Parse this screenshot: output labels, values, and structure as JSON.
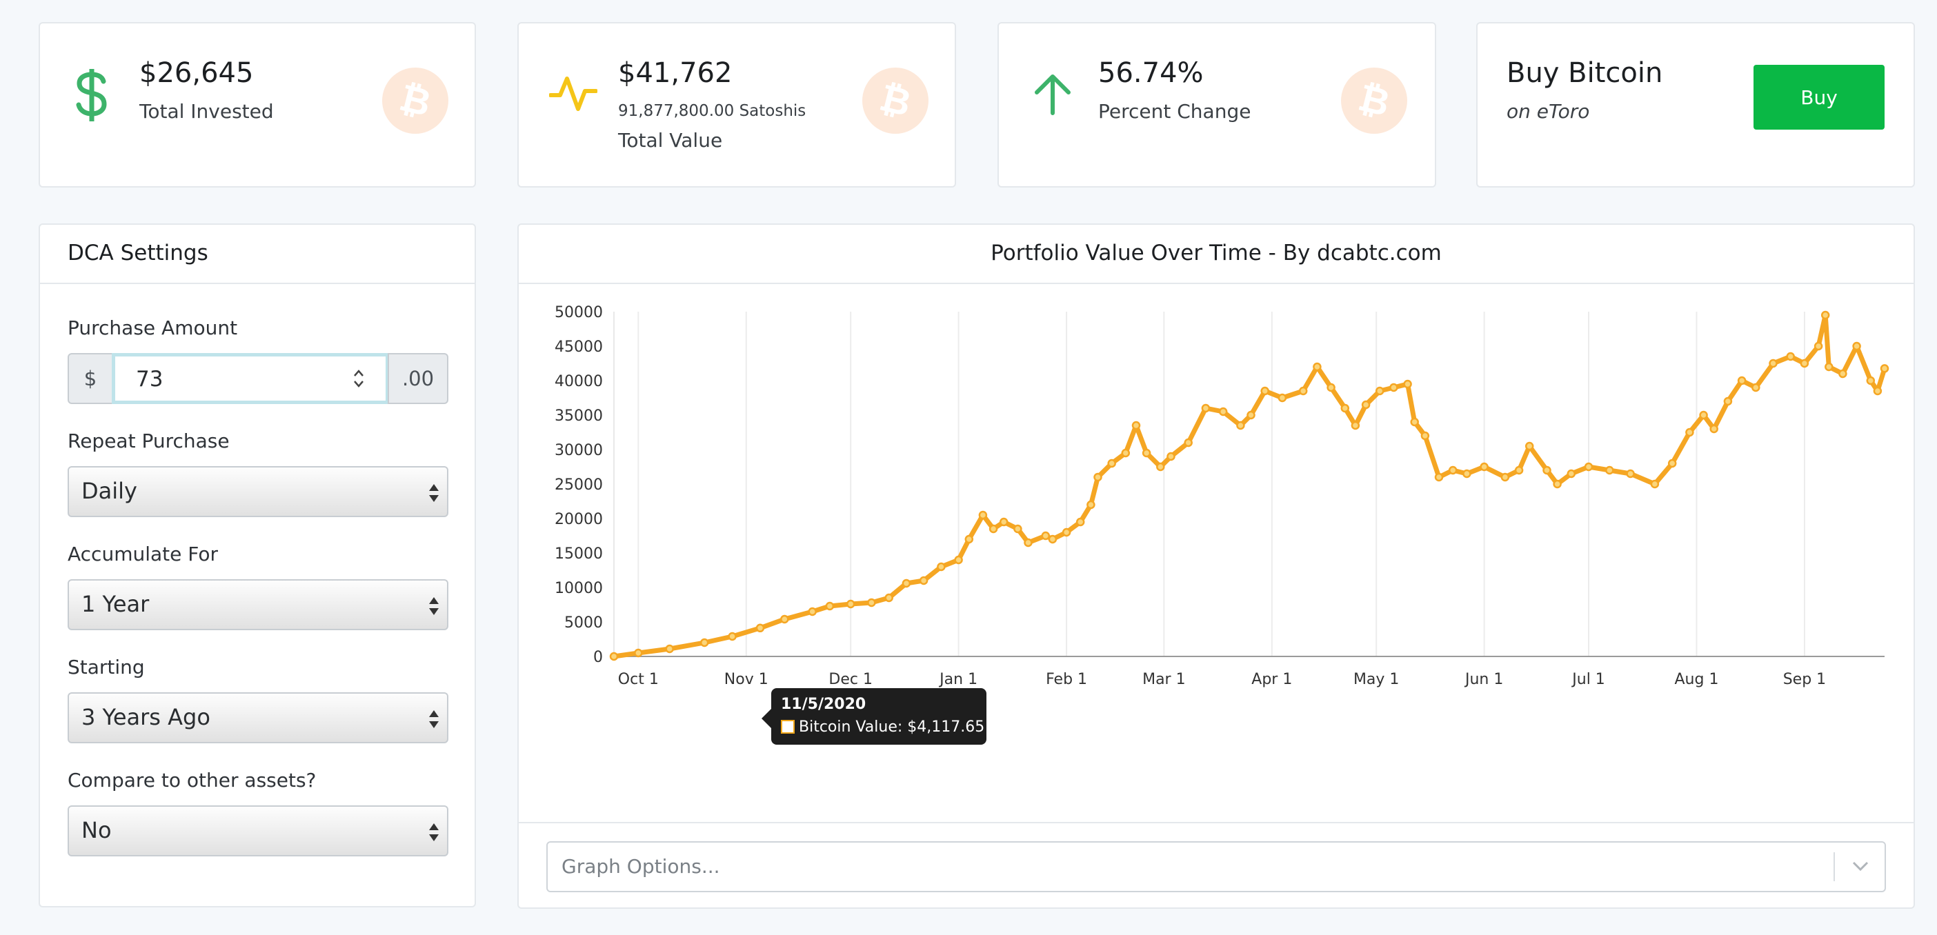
{
  "stats": {
    "invested": {
      "value": "$26,645",
      "label": "Total Invested",
      "icon": "dollar-icon",
      "color": "#3db36a"
    },
    "value": {
      "value": "$41,762",
      "satoshis": "91,877,800.00 Satoshis",
      "label": "Total Value",
      "icon": "pulse-icon",
      "color": "#f5c518"
    },
    "change": {
      "value": "56.74%",
      "label": "Percent Change",
      "icon": "arrow-up-icon",
      "color": "#3db36a"
    },
    "buy": {
      "title": "Buy Bitcoin",
      "subtitle": "on eToro",
      "button_label": "Buy",
      "button_color": "#0ab845"
    }
  },
  "settings": {
    "title": "DCA Settings",
    "purchase_amount": {
      "label": "Purchase Amount",
      "prefix": "$",
      "value": "73",
      "suffix": ".00"
    },
    "repeat": {
      "label": "Repeat Purchase",
      "value": "Daily"
    },
    "accumulate": {
      "label": "Accumulate For",
      "value": "1 Year"
    },
    "starting": {
      "label": "Starting",
      "value": "3 Years Ago"
    },
    "compare": {
      "label": "Compare to other assets?",
      "value": "No"
    }
  },
  "chart": {
    "title": "Portfolio Value Over Time - By dcabtc.com",
    "graph_options_placeholder": "Graph Options...",
    "tooltip": {
      "date": "11/5/2020",
      "text": "Bitcoin Value: $4,117.65"
    }
  },
  "chart_data": {
    "type": "line",
    "title": "Portfolio Value Over Time - By dcabtc.com",
    "xlabel": "",
    "ylabel": "",
    "ylim": [
      0,
      50000
    ],
    "y_ticks": [
      "0",
      "5000",
      "10000",
      "15000",
      "20000",
      "25000",
      "30000",
      "35000",
      "40000",
      "45000",
      "50000"
    ],
    "x_ticks": [
      "Oct 1",
      "Nov 1",
      "Dec 1",
      "Jan 1",
      "Feb 1",
      "Mar 1",
      "Apr 1",
      "May 1",
      "Jun 1",
      "Jul 1",
      "Aug 1",
      "Sep 1"
    ],
    "x_range": [
      "2020-09-24",
      "2021-09-24"
    ],
    "grid": "vertical",
    "color": "#f5a623",
    "series": [
      {
        "name": "Bitcoin Value",
        "points": [
          [
            "2020-09-24",
            0
          ],
          [
            "2020-10-01",
            500
          ],
          [
            "2020-10-10",
            1100
          ],
          [
            "2020-10-20",
            2000
          ],
          [
            "2020-10-28",
            2900
          ],
          [
            "2020-11-05",
            4118
          ],
          [
            "2020-11-12",
            5400
          ],
          [
            "2020-11-20",
            6500
          ],
          [
            "2020-11-25",
            7300
          ],
          [
            "2020-12-01",
            7600
          ],
          [
            "2020-12-07",
            7800
          ],
          [
            "2020-12-12",
            8500
          ],
          [
            "2020-12-17",
            10600
          ],
          [
            "2020-12-22",
            11000
          ],
          [
            "2020-12-27",
            13000
          ],
          [
            "2021-01-01",
            14000
          ],
          [
            "2021-01-04",
            17000
          ],
          [
            "2021-01-08",
            20500
          ],
          [
            "2021-01-11",
            18500
          ],
          [
            "2021-01-14",
            19500
          ],
          [
            "2021-01-18",
            18500
          ],
          [
            "2021-01-21",
            16500
          ],
          [
            "2021-01-26",
            17500
          ],
          [
            "2021-01-28",
            17000
          ],
          [
            "2021-02-01",
            18000
          ],
          [
            "2021-02-05",
            19500
          ],
          [
            "2021-02-08",
            22000
          ],
          [
            "2021-02-10",
            26000
          ],
          [
            "2021-02-14",
            28000
          ],
          [
            "2021-02-18",
            29500
          ],
          [
            "2021-02-21",
            33500
          ],
          [
            "2021-02-24",
            29500
          ],
          [
            "2021-02-28",
            27500
          ],
          [
            "2021-03-03",
            29000
          ],
          [
            "2021-03-08",
            31000
          ],
          [
            "2021-03-13",
            36000
          ],
          [
            "2021-03-18",
            35500
          ],
          [
            "2021-03-23",
            33500
          ],
          [
            "2021-03-26",
            35000
          ],
          [
            "2021-03-30",
            38500
          ],
          [
            "2021-04-04",
            37500
          ],
          [
            "2021-04-10",
            38500
          ],
          [
            "2021-04-14",
            42000
          ],
          [
            "2021-04-18",
            39000
          ],
          [
            "2021-04-22",
            36000
          ],
          [
            "2021-04-25",
            33500
          ],
          [
            "2021-04-28",
            36500
          ],
          [
            "2021-05-02",
            38500
          ],
          [
            "2021-05-06",
            39000
          ],
          [
            "2021-05-10",
            39500
          ],
          [
            "2021-05-12",
            34000
          ],
          [
            "2021-05-15",
            32000
          ],
          [
            "2021-05-19",
            26000
          ],
          [
            "2021-05-23",
            27000
          ],
          [
            "2021-05-27",
            26500
          ],
          [
            "2021-06-01",
            27500
          ],
          [
            "2021-06-07",
            26000
          ],
          [
            "2021-06-11",
            27000
          ],
          [
            "2021-06-14",
            30500
          ],
          [
            "2021-06-19",
            27000
          ],
          [
            "2021-06-22",
            25000
          ],
          [
            "2021-06-26",
            26500
          ],
          [
            "2021-07-01",
            27500
          ],
          [
            "2021-07-07",
            27000
          ],
          [
            "2021-07-13",
            26500
          ],
          [
            "2021-07-20",
            25000
          ],
          [
            "2021-07-25",
            28000
          ],
          [
            "2021-07-30",
            32500
          ],
          [
            "2021-08-03",
            35000
          ],
          [
            "2021-08-06",
            33000
          ],
          [
            "2021-08-10",
            37000
          ],
          [
            "2021-08-14",
            40000
          ],
          [
            "2021-08-18",
            39000
          ],
          [
            "2021-08-23",
            42500
          ],
          [
            "2021-08-28",
            43500
          ],
          [
            "2021-09-01",
            42500
          ],
          [
            "2021-09-05",
            45000
          ],
          [
            "2021-09-07",
            49500
          ],
          [
            "2021-09-08",
            42000
          ],
          [
            "2021-09-12",
            41000
          ],
          [
            "2021-09-16",
            45000
          ],
          [
            "2021-09-20",
            40000
          ],
          [
            "2021-09-22",
            38500
          ],
          [
            "2021-09-24",
            41762
          ]
        ]
      }
    ]
  }
}
